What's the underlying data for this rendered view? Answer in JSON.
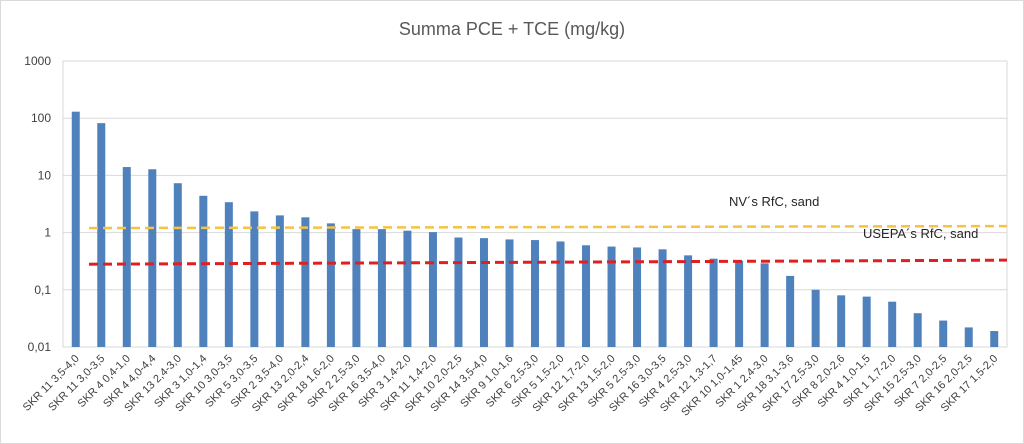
{
  "chart_data": {
    "type": "bar",
    "title": "Summa PCE + TCE (mg/kg)",
    "xlabel": "",
    "ylabel": "",
    "yscale": "log",
    "ylim": [
      0.01,
      1000
    ],
    "yticks": [
      0.01,
      0.1,
      1,
      10,
      100,
      1000
    ],
    "ytick_labels": [
      "0,01",
      "0,1",
      "1",
      "10",
      "100",
      "1000"
    ],
    "grid": true,
    "bar_color": "#4f81bd",
    "categories": [
      "SKR 11 3,5-4,0",
      "SKR 11 3,0-3,5",
      "SKR 4 0,4-1,0",
      "SKR 4 4,0-4,4",
      "SKR 13 2,4-3,0",
      "SKR 3 1,0-1,4",
      "SKR 10 3,0-3,5",
      "SKR 5 3,0-3,5",
      "SKR 2 3,5-4,0",
      "SKR 13 2,0-2,4",
      "SKR 18 1,6-2,0",
      "SKR 2 2,5-3,0",
      "SKR 16 3,5-4,0",
      "SKR 3 1,4-2,0",
      "SKR 11 1,4-2,0",
      "SKR 10 2,0-2,5",
      "SKR 14 3,5-4,0",
      "SKR 9 1,0-1,6",
      "SKR 6 2,5-3,0",
      "SKR 5 1,5-2,0",
      "SKR 12 1,7-2,0",
      "SKR 13 1,5-2,0",
      "SKR 5 2,5-3,0",
      "SKR 16 3,0-3,5",
      "SKR 4 2,5-3,0",
      "SKR 12 1,3-1,7",
      "SKR 10 1,0-1,45",
      "SKR 1 2,4-3,0",
      "SKR 18 3,1-3,6",
      "SKR 17 2,5-3,0",
      "SKR 8 2,0-2,6",
      "SKR 4 1,0-1,5",
      "SKR 1 1,7-2,0",
      "SKR 15 2,5-3,0",
      "SKR 7 2,0-2,5",
      "SKR 16 2,0-2,5",
      "SKR 17 1,5-2,0"
    ],
    "values": [
      130,
      82,
      14,
      12.8,
      7.3,
      4.4,
      3.4,
      2.35,
      2.0,
      1.85,
      1.45,
      1.15,
      1.15,
      1.08,
      1.02,
      0.82,
      0.8,
      0.76,
      0.74,
      0.7,
      0.6,
      0.57,
      0.55,
      0.51,
      0.4,
      0.35,
      0.32,
      0.29,
      0.175,
      0.1,
      0.08,
      0.076,
      0.062,
      0.039,
      0.029,
      0.022,
      0.019
    ],
    "reference_lines": [
      {
        "label": "NV´s RfC, sand",
        "y_start": 1.2,
        "y_end": 1.3,
        "color": "#f5c242"
      },
      {
        "label": "USEPA´s RfC, sand",
        "y_start": 0.28,
        "y_end": 0.33,
        "color": "#e02020"
      }
    ]
  }
}
